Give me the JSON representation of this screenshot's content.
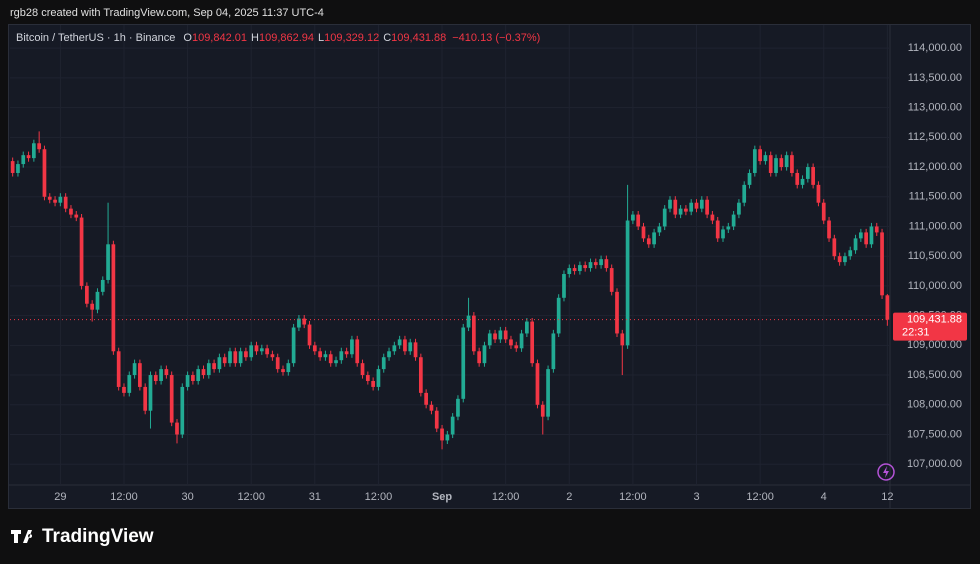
{
  "credit": "rgb28 created with TradingView.com, Sep 04, 2025 11:37 UTC-4",
  "brand": "TradingView",
  "chart_data": {
    "type": "candlestick",
    "title": "Bitcoin / TetherUS · 1h · Binance",
    "ohlc_legend": [
      {
        "key": "O",
        "text": "109,842.01"
      },
      {
        "key": "H",
        "text": "109,862.94"
      },
      {
        "key": "L",
        "text": "109,329.12"
      },
      {
        "key": "C",
        "text": "109,431.88"
      }
    ],
    "change": "−410.13 (−0.37%)",
    "price_label": "109,431.88",
    "countdown": "22:31",
    "up_color": "#22ab94",
    "down_color": "#f23645",
    "grid": true,
    "xlim": [
      -0.5,
      165.5
    ],
    "xticks": [
      {
        "value": 9,
        "label": "29"
      },
      {
        "value": 21,
        "label": "12:00"
      },
      {
        "value": 33,
        "label": "30"
      },
      {
        "value": 45,
        "label": "12:00"
      },
      {
        "value": 57,
        "label": "31"
      },
      {
        "value": 69,
        "label": "12:00"
      },
      {
        "value": 81,
        "label": "Sep"
      },
      {
        "value": 93,
        "label": "12:00"
      },
      {
        "value": 105,
        "label": "2"
      },
      {
        "value": 117,
        "label": "12:00"
      },
      {
        "value": 129,
        "label": "3"
      },
      {
        "value": 141,
        "label": "12:00"
      },
      {
        "value": 153,
        "label": "4"
      },
      {
        "value": 165,
        "label": "12"
      }
    ],
    "ylim": [
      106650,
      114390
    ],
    "yticks": [
      {
        "value": 107000,
        "label": "107,000.00"
      },
      {
        "value": 107500,
        "label": "107,500.00"
      },
      {
        "value": 108000,
        "label": "108,000.00"
      },
      {
        "value": 108500,
        "label": "108,500.00"
      },
      {
        "value": 109000,
        "label": "109,000.00"
      },
      {
        "value": 109500,
        "label": "109,500.00"
      },
      {
        "value": 110000,
        "label": "110,000.00"
      },
      {
        "value": 110500,
        "label": "110,500.00"
      },
      {
        "value": 111000,
        "label": "111,000.00"
      },
      {
        "value": 111500,
        "label": "111,500.00"
      },
      {
        "value": 112000,
        "label": "112,000.00"
      },
      {
        "value": 112500,
        "label": "112,500.00"
      },
      {
        "value": 113000,
        "label": "113,000.00"
      },
      {
        "value": 113500,
        "label": "113,500.00"
      },
      {
        "value": 114000,
        "label": "114,000.00"
      }
    ],
    "candles": [
      [
        112100,
        112160,
        111840,
        111900
      ],
      [
        111900,
        112110,
        111840,
        112050
      ],
      [
        112050,
        112260,
        111990,
        112200
      ],
      [
        112200,
        112260,
        112090,
        112150
      ],
      [
        112150,
        112460,
        112090,
        112400
      ],
      [
        112400,
        112600,
        112240,
        112300
      ],
      [
        112300,
        112360,
        111440,
        111500
      ],
      [
        111500,
        111560,
        111390,
        111450
      ],
      [
        111450,
        111510,
        111340,
        111400
      ],
      [
        111400,
        111560,
        111340,
        111500
      ],
      [
        111500,
        111560,
        111240,
        111300
      ],
      [
        111300,
        111360,
        111140,
        111200
      ],
      [
        111200,
        111260,
        111090,
        111150
      ],
      [
        111150,
        111210,
        109940,
        110000
      ],
      [
        110000,
        110060,
        109640,
        109700
      ],
      [
        109700,
        109760,
        109400,
        109600
      ],
      [
        109600,
        109960,
        109540,
        109900
      ],
      [
        109900,
        110160,
        109840,
        110100
      ],
      [
        110100,
        111400,
        110040,
        110700
      ],
      [
        110700,
        110760,
        108840,
        108900
      ],
      [
        108900,
        108960,
        108240,
        108300
      ],
      [
        108300,
        108360,
        108140,
        108200
      ],
      [
        108200,
        108560,
        108140,
        108500
      ],
      [
        108500,
        108760,
        108440,
        108700
      ],
      [
        108700,
        108760,
        108240,
        108300
      ],
      [
        108300,
        108360,
        107840,
        107900
      ],
      [
        107900,
        108560,
        107600,
        108500
      ],
      [
        108500,
        108560,
        108340,
        108400
      ],
      [
        108400,
        108660,
        108340,
        108600
      ],
      [
        108600,
        108660,
        108440,
        108500
      ],
      [
        108500,
        108560,
        107640,
        107700
      ],
      [
        107700,
        107760,
        107350,
        107500
      ],
      [
        107500,
        108360,
        107440,
        108300
      ],
      [
        108300,
        108560,
        108240,
        108500
      ],
      [
        108500,
        108560,
        108340,
        108400
      ],
      [
        108400,
        108660,
        108340,
        108600
      ],
      [
        108600,
        108660,
        108440,
        108500
      ],
      [
        108500,
        108760,
        108440,
        108700
      ],
      [
        108700,
        108760,
        108540,
        108600
      ],
      [
        108600,
        108860,
        108540,
        108800
      ],
      [
        108800,
        108860,
        108640,
        108700
      ],
      [
        108700,
        108960,
        108640,
        108900
      ],
      [
        108900,
        108960,
        108640,
        108700
      ],
      [
        108700,
        108960,
        108640,
        108900
      ],
      [
        108900,
        108960,
        108740,
        108800
      ],
      [
        108800,
        109060,
        108740,
        109000
      ],
      [
        109000,
        109060,
        108840,
        108900
      ],
      [
        108900,
        109010,
        108840,
        108950
      ],
      [
        108950,
        109010,
        108790,
        108850
      ],
      [
        108850,
        108910,
        108740,
        108800
      ],
      [
        108800,
        108860,
        108540,
        108600
      ],
      [
        108600,
        108660,
        108490,
        108550
      ],
      [
        108550,
        108760,
        108490,
        108700
      ],
      [
        108700,
        109360,
        108640,
        109300
      ],
      [
        109300,
        109510,
        109240,
        109450
      ],
      [
        109450,
        109510,
        109290,
        109350
      ],
      [
        109350,
        109410,
        108940,
        109000
      ],
      [
        109000,
        109060,
        108840,
        108900
      ],
      [
        108900,
        108960,
        108740,
        108800
      ],
      [
        108800,
        108910,
        108740,
        108850
      ],
      [
        108850,
        108910,
        108640,
        108700
      ],
      [
        108700,
        108810,
        108640,
        108750
      ],
      [
        108750,
        108960,
        108690,
        108900
      ],
      [
        108900,
        108960,
        108790,
        108850
      ],
      [
        108850,
        109160,
        108790,
        109100
      ],
      [
        109100,
        109160,
        108640,
        108700
      ],
      [
        108700,
        108760,
        108440,
        108500
      ],
      [
        108500,
        108560,
        108340,
        108400
      ],
      [
        108400,
        108460,
        108240,
        108300
      ],
      [
        108300,
        108660,
        108240,
        108600
      ],
      [
        108600,
        108860,
        108540,
        108800
      ],
      [
        108800,
        108960,
        108740,
        108900
      ],
      [
        108900,
        109060,
        108840,
        109000
      ],
      [
        109000,
        109160,
        108940,
        109100
      ],
      [
        109100,
        109160,
        108840,
        108900
      ],
      [
        108900,
        109110,
        108840,
        109050
      ],
      [
        109050,
        109110,
        108740,
        108800
      ],
      [
        108800,
        108860,
        108140,
        108200
      ],
      [
        108200,
        108260,
        107940,
        108000
      ],
      [
        108000,
        108060,
        107840,
        107900
      ],
      [
        107900,
        107960,
        107540,
        107600
      ],
      [
        107600,
        107660,
        107250,
        107400
      ],
      [
        107400,
        107560,
        107340,
        107500
      ],
      [
        107500,
        107860,
        107440,
        107800
      ],
      [
        107800,
        108160,
        107740,
        108100
      ],
      [
        108100,
        109360,
        108040,
        109300
      ],
      [
        109300,
        109800,
        109240,
        109500
      ],
      [
        109500,
        109560,
        108840,
        108900
      ],
      [
        108900,
        108960,
        108640,
        108700
      ],
      [
        108700,
        109060,
        108640,
        109000
      ],
      [
        109000,
        109260,
        108940,
        109200
      ],
      [
        109200,
        109260,
        109040,
        109100
      ],
      [
        109100,
        109310,
        109040,
        109250
      ],
      [
        109250,
        109310,
        109040,
        109100
      ],
      [
        109100,
        109160,
        108940,
        109000
      ],
      [
        109000,
        109060,
        108890,
        108950
      ],
      [
        108950,
        109260,
        108890,
        109200
      ],
      [
        109200,
        109460,
        109140,
        109400
      ],
      [
        109400,
        109460,
        108640,
        108700
      ],
      [
        108700,
        108760,
        107940,
        108000
      ],
      [
        108000,
        108060,
        107500,
        107800
      ],
      [
        107800,
        108660,
        107740,
        108600
      ],
      [
        108600,
        109260,
        108540,
        109200
      ],
      [
        109200,
        109860,
        109140,
        109800
      ],
      [
        109800,
        110260,
        109740,
        110200
      ],
      [
        110200,
        110360,
        110140,
        110300
      ],
      [
        110300,
        110360,
        110190,
        110250
      ],
      [
        110250,
        110410,
        110190,
        110350
      ],
      [
        110350,
        110410,
        110240,
        110300
      ],
      [
        110300,
        110460,
        110240,
        110400
      ],
      [
        110400,
        110460,
        110290,
        110350
      ],
      [
        110350,
        110510,
        110290,
        110450
      ],
      [
        110450,
        110510,
        110240,
        110300
      ],
      [
        110300,
        110360,
        109840,
        109900
      ],
      [
        109900,
        109960,
        109140,
        109200
      ],
      [
        109200,
        109260,
        108500,
        109000
      ],
      [
        109000,
        111700,
        108940,
        111100
      ],
      [
        111100,
        111260,
        111040,
        111200
      ],
      [
        111200,
        111260,
        110940,
        111000
      ],
      [
        111000,
        111060,
        110740,
        110800
      ],
      [
        110800,
        110860,
        110640,
        110700
      ],
      [
        110700,
        110960,
        110640,
        110900
      ],
      [
        110900,
        111060,
        110840,
        111000
      ],
      [
        111000,
        111360,
        110940,
        111300
      ],
      [
        111300,
        111510,
        111240,
        111450
      ],
      [
        111450,
        111510,
        111140,
        111200
      ],
      [
        111200,
        111360,
        111140,
        111300
      ],
      [
        111300,
        111360,
        111190,
        111250
      ],
      [
        111250,
        111460,
        111190,
        111400
      ],
      [
        111400,
        111460,
        111240,
        111300
      ],
      [
        111300,
        111510,
        111240,
        111450
      ],
      [
        111450,
        111510,
        111140,
        111200
      ],
      [
        111200,
        111260,
        111040,
        111100
      ],
      [
        111100,
        111160,
        110740,
        110800
      ],
      [
        110800,
        111010,
        110740,
        110950
      ],
      [
        110950,
        111060,
        110890,
        111000
      ],
      [
        111000,
        111260,
        110940,
        111200
      ],
      [
        111200,
        111460,
        111140,
        111400
      ],
      [
        111400,
        111760,
        111340,
        111700
      ],
      [
        111700,
        111960,
        111640,
        111900
      ],
      [
        111900,
        112360,
        111840,
        112300
      ],
      [
        112300,
        112360,
        112040,
        112100
      ],
      [
        112100,
        112260,
        112040,
        112200
      ],
      [
        112200,
        112260,
        111840,
        111900
      ],
      [
        111900,
        112210,
        111840,
        112150
      ],
      [
        112150,
        112210,
        111940,
        112000
      ],
      [
        112000,
        112260,
        111940,
        112200
      ],
      [
        112200,
        112260,
        111840,
        111900
      ],
      [
        111900,
        111960,
        111640,
        111700
      ],
      [
        111700,
        111860,
        111640,
        111800
      ],
      [
        111800,
        112060,
        111740,
        112000
      ],
      [
        112000,
        112060,
        111640,
        111700
      ],
      [
        111700,
        111760,
        111340,
        111400
      ],
      [
        111400,
        111460,
        111040,
        111100
      ],
      [
        111100,
        111160,
        110740,
        110800
      ],
      [
        110800,
        110860,
        110440,
        110500
      ],
      [
        110500,
        110560,
        110340,
        110400
      ],
      [
        110400,
        110560,
        110340,
        110500
      ],
      [
        110500,
        110660,
        110440,
        110600
      ],
      [
        110600,
        110860,
        110540,
        110800
      ],
      [
        110800,
        110960,
        110740,
        110900
      ],
      [
        110900,
        110960,
        110640,
        110700
      ],
      [
        110700,
        111060,
        110640,
        111000
      ],
      [
        111000,
        111060,
        110840,
        110900
      ],
      [
        110900,
        110960,
        109780,
        109842.01
      ],
      [
        109842.01,
        109862.94,
        109329.12,
        109431.88
      ]
    ]
  }
}
